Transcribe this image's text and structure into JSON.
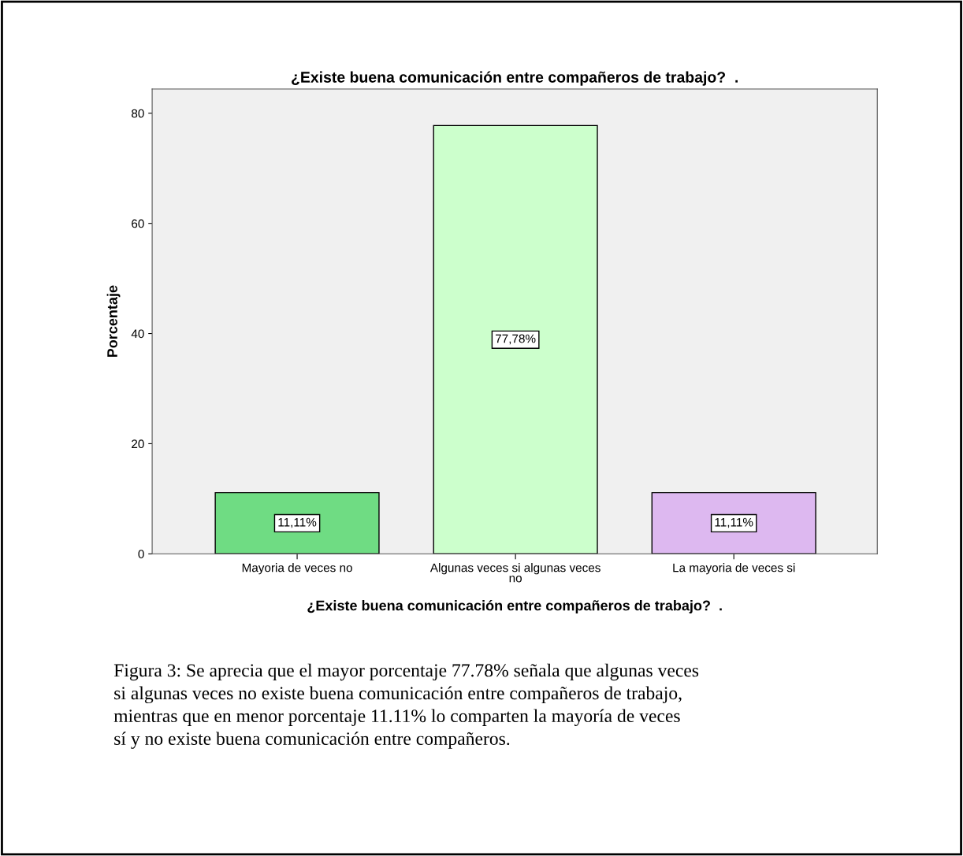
{
  "chart_data": {
    "type": "bar",
    "title": "¿Existe buena comunicación entre compañeros de trabajo?  .",
    "xlabel": "¿Existe buena comunicación entre compañeros de trabajo?  .",
    "ylabel": "Porcentaje",
    "categories": [
      "Mayoria de veces no",
      "Algunas veces si algunas veces no",
      "La mayoria de veces si"
    ],
    "values": [
      11.11,
      77.78,
      11.11
    ],
    "colors": [
      "#6fdc83",
      "#ccffcc",
      "#ddb8f0"
    ],
    "value_labels": [
      "11,11%",
      "77,78%",
      "11,11%"
    ],
    "ylim": [
      0,
      84.4
    ],
    "yticks": [
      0,
      20,
      40,
      60,
      80
    ],
    "grid": false,
    "annotations": [
      "Figura 3: Se aprecia que el mayor porcentaje 77.78% señala que algunas veces\nsi algunas veces no existe buena comunicación entre compañeros de trabajo,\nmientras que en menor porcentaje 11.11% lo comparten la mayoría de veces\nsí y no existe buena comunicación entre compañeros."
    ]
  }
}
